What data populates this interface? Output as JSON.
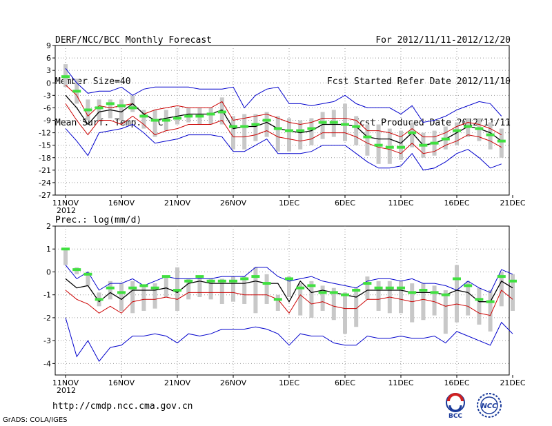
{
  "header": {
    "left": [
      "DERF/NCC/BCC Monthly Forecast",
      "Member Size=40",
      "Mean Surf. Temp.: °C"
    ],
    "right": [
      "For 2012/11/11-2012/12/20",
      "Fcst Started Refer Date 2012/11/10",
      "Fcst Produced Date 2012/11/11"
    ]
  },
  "footer": {
    "url": "http://cmdp.ncc.cma.gov.cn",
    "grads": "GrADS: COLA/IGES"
  },
  "logos": {
    "bcc": "BCC",
    "ncc": "NCC"
  },
  "colors": {
    "envelope": "#0000cc",
    "inner": "#cc0000",
    "mean": "#000000",
    "marker": "#40e040",
    "bar": "#c8c8c8"
  },
  "chart_data": [
    {
      "type": "line",
      "title": "Mean Surf. Temp.: °C",
      "ylim": [
        -27,
        9
      ],
      "yticks": [
        -27,
        -24,
        -21,
        -18,
        -15,
        -12,
        -9,
        -6,
        -3,
        0,
        3,
        6,
        9
      ],
      "xticks": [
        {
          "day": 0,
          "label": "11NOV",
          "sub": "2012"
        },
        {
          "day": 5,
          "label": "16NOV"
        },
        {
          "day": 10,
          "label": "21NOV"
        },
        {
          "day": 15,
          "label": "26NOV"
        },
        {
          "day": 20,
          "label": "1DEC"
        },
        {
          "day": 25,
          "label": "6DEC"
        },
        {
          "day": 30,
          "label": "11DEC"
        },
        {
          "day": 35,
          "label": "16DEC"
        },
        {
          "day": 40,
          "label": "21DEC"
        }
      ],
      "series": [
        {
          "name": "max",
          "values": [
            3.5,
            0,
            -2.5,
            -2,
            -2,
            -1,
            -3,
            -1.5,
            -1,
            -1,
            -1,
            -1,
            -1.5,
            -1.5,
            -1.5,
            -1,
            -6,
            -3,
            -1.5,
            -1,
            -5,
            -5,
            -5.5,
            -5,
            -4.5,
            -3,
            -5,
            -6,
            -6,
            -6,
            -7.5,
            -5.5,
            -9.5,
            -9,
            -8,
            -6.5,
            -5.5,
            -4.5,
            -5,
            -8
          ]
        },
        {
          "name": "inner_high",
          "values": [
            -0.5,
            -3,
            -8,
            -5.5,
            -6,
            -5.5,
            -5,
            -7.5,
            -6.5,
            -6,
            -5.5,
            -6,
            -6,
            -6,
            -4.5,
            -9,
            -8.5,
            -8,
            -7.5,
            -8.5,
            -9.5,
            -10,
            -9.5,
            -8.5,
            -8.5,
            -8.5,
            -9,
            -11.5,
            -11.5,
            -12,
            -13,
            -11,
            -13,
            -13,
            -12,
            -10.5,
            -9.5,
            -10,
            -11,
            -12.5
          ]
        },
        {
          "name": "mean",
          "values": [
            -3,
            -6,
            -10,
            -7,
            -6.5,
            -7,
            -5,
            -7.5,
            -9,
            -8.5,
            -8,
            -7.5,
            -7.5,
            -7.5,
            -6.5,
            -11,
            -10.5,
            -10.5,
            -9.5,
            -11,
            -11.5,
            -12,
            -11.5,
            -10,
            -10,
            -10,
            -10.5,
            -13,
            -13.5,
            -13.5,
            -14.5,
            -12,
            -15,
            -14.5,
            -13.5,
            -12,
            -10.5,
            -11,
            -12,
            -14
          ]
        },
        {
          "name": "inner_low",
          "values": [
            -5,
            -9,
            -12.5,
            -9,
            -9,
            -10,
            -8,
            -10,
            -12.5,
            -11.5,
            -11,
            -10,
            -10,
            -10,
            -9,
            -13,
            -13,
            -12.5,
            -11.5,
            -13,
            -13.5,
            -14,
            -13.5,
            -12,
            -12,
            -12,
            -13,
            -14.5,
            -15.5,
            -16,
            -17,
            -14.5,
            -17,
            -16.5,
            -15,
            -14,
            -12.5,
            -13,
            -14,
            -15.5
          ]
        },
        {
          "name": "min",
          "values": [
            -11,
            -14,
            -17.5,
            -12,
            -11.5,
            -11,
            -10,
            -12,
            -14.5,
            -14,
            -13.5,
            -12.5,
            -12.5,
            -12.5,
            -13,
            -16.5,
            -16.5,
            -15,
            -13.5,
            -17,
            -17,
            -17,
            -16.5,
            -15,
            -15,
            -15,
            -17,
            -19,
            -20.5,
            -20.5,
            -20,
            -17,
            -21,
            -20.5,
            -19,
            -17,
            -16,
            -18,
            -20.5,
            -19.5
          ]
        },
        {
          "name": "observed_marker",
          "values": [
            1.5,
            -2,
            -6.5,
            -6,
            -5,
            -5.5,
            -6,
            -8,
            -9,
            -9,
            -8.5,
            -8,
            -8,
            -7.5,
            -7,
            -10.5,
            -10.5,
            -10,
            -9,
            -11,
            -11.5,
            -11.5,
            -11,
            -9.5,
            -9.5,
            -10,
            -10.5,
            -13,
            -15,
            -15.5,
            -15.5,
            -12,
            -15,
            -14.5,
            -13.5,
            -11.5,
            -10.5,
            -11,
            -12.5,
            -14
          ]
        }
      ],
      "bars_high": [
        4.5,
        1,
        -4,
        -4,
        -4,
        -4,
        -3,
        -6.5,
        -6.5,
        -6.5,
        -6,
        -6,
        -6,
        -6,
        -3.5,
        -8,
        -7.5,
        -7.5,
        -7,
        -8,
        -8.5,
        -9,
        -8.5,
        -7,
        -6.5,
        -5,
        -8,
        -10,
        -10,
        -11,
        -11.5,
        -9.5,
        -12,
        -11.5,
        -10.5,
        -9.5,
        -8.5,
        -8.5,
        -9.5,
        -11
      ],
      "bars_low": [
        -1,
        -5,
        -9,
        -9,
        -8.5,
        -9,
        -7,
        -11,
        -13,
        -11.5,
        -10,
        -9.5,
        -10,
        -10,
        -10,
        -16,
        -16,
        -14,
        -13,
        -16.5,
        -16.5,
        -16,
        -15,
        -13.5,
        -13,
        -14,
        -15,
        -17.5,
        -19.5,
        -19.5,
        -18.5,
        -15.5,
        -18,
        -17.5,
        -16,
        -15,
        -13,
        -14,
        -16,
        -18
      ]
    },
    {
      "type": "line",
      "title": "Prec.: log(mm/d)",
      "ylim": [
        -4.5,
        2
      ],
      "yticks": [
        -4,
        -3,
        -2,
        -1,
        0,
        1,
        2
      ],
      "xticks": [
        {
          "day": 0,
          "label": "11NOV",
          "sub": "2012"
        },
        {
          "day": 5,
          "label": "16NOV"
        },
        {
          "day": 10,
          "label": "21NOV"
        },
        {
          "day": 15,
          "label": "26NOV"
        },
        {
          "day": 20,
          "label": "1DEC"
        },
        {
          "day": 25,
          "label": "6DEC"
        },
        {
          "day": 30,
          "label": "11DEC"
        },
        {
          "day": 35,
          "label": "16DEC"
        },
        {
          "day": 40,
          "label": "21DEC"
        }
      ],
      "series": [
        {
          "name": "max",
          "values": [
            0.3,
            -0.3,
            0,
            -0.8,
            -0.5,
            -0.5,
            -0.3,
            -0.6,
            -0.4,
            -0.2,
            -0.3,
            -0.3,
            -0.3,
            -0.3,
            -0.2,
            -0.2,
            -0.2,
            0.2,
            0.2,
            -0.2,
            -0.4,
            -0.3,
            -0.2,
            -0.4,
            -0.5,
            -0.6,
            -0.7,
            -0.4,
            -0.3,
            -0.3,
            -0.4,
            -0.3,
            -0.5,
            -0.5,
            -0.6,
            -0.8,
            -0.4,
            -0.7,
            -0.9,
            0.1,
            -0.1
          ]
        },
        {
          "name": "mean",
          "values": [
            -0.3,
            -0.7,
            -0.6,
            -1.3,
            -0.9,
            -1.2,
            -0.8,
            -0.8,
            -0.8,
            -0.7,
            -0.9,
            -0.5,
            -0.4,
            -0.5,
            -0.5,
            -0.5,
            -0.5,
            -0.4,
            -0.5,
            -0.5,
            -1.3,
            -0.4,
            -0.9,
            -0.8,
            -0.9,
            -1.0,
            -1.1,
            -0.8,
            -0.8,
            -0.8,
            -0.8,
            -0.9,
            -0.9,
            -0.9,
            -1.0,
            -0.8,
            -0.9,
            -1.3,
            -1.3,
            -0.4,
            -0.7
          ]
        },
        {
          "name": "inner_low",
          "values": [
            -0.8,
            -1.2,
            -1.4,
            -1.8,
            -1.5,
            -1.8,
            -1.3,
            -1.2,
            -1.2,
            -1.1,
            -1.2,
            -0.9,
            -0.9,
            -0.9,
            -0.9,
            -0.9,
            -1.0,
            -1.0,
            -1.0,
            -1.2,
            -1.8,
            -1.0,
            -1.4,
            -1.3,
            -1.5,
            -1.6,
            -1.6,
            -1.2,
            -1.2,
            -1.1,
            -1.2,
            -1.3,
            -1.2,
            -1.3,
            -1.5,
            -1.4,
            -1.5,
            -1.8,
            -1.9,
            -0.8,
            -1.2
          ]
        },
        {
          "name": "min",
          "values": [
            -2.0,
            -3.7,
            -3.0,
            -3.9,
            -3.3,
            -3.2,
            -2.8,
            -2.8,
            -2.7,
            -2.8,
            -3.1,
            -2.7,
            -2.8,
            -2.7,
            -2.5,
            -2.5,
            -2.5,
            -2.4,
            -2.5,
            -2.7,
            -3.2,
            -2.7,
            -2.8,
            -2.8,
            -3.1,
            -3.2,
            -3.2,
            -2.8,
            -2.9,
            -2.9,
            -2.8,
            -2.9,
            -2.9,
            -2.8,
            -3.1,
            -2.6,
            -2.8,
            -3.0,
            -3.2,
            -2.2,
            -2.7
          ]
        },
        {
          "name": "observed_marker",
          "values": [
            1.0,
            0.1,
            -0.1,
            -1.2,
            -0.7,
            -0.9,
            -0.7,
            -0.6,
            -0.7,
            -0.2,
            -0.8,
            -0.4,
            -0.2,
            -0.4,
            -0.4,
            -0.4,
            -0.3,
            -0.2,
            -0.5,
            -1.2,
            -0.3,
            -0.7,
            -0.6,
            -0.9,
            -0.9,
            -1.0,
            -0.8,
            -0.5,
            -0.7,
            -0.7,
            -0.7,
            -0.9,
            -0.8,
            -0.9,
            -1.0,
            -0.3,
            -0.6,
            -1.2,
            -1.3,
            -0.2,
            -0.4
          ]
        }
      ],
      "bars_high": [
        1.0,
        0.2,
        0,
        -0.9,
        -0.4,
        -0.5,
        -0.4,
        -0.6,
        -0.5,
        -0.2,
        0.2,
        -0.3,
        -0.2,
        -0.3,
        -0.3,
        -0.2,
        -0.2,
        0.2,
        -0.1,
        -1.0,
        -0.2,
        -0.5,
        -0.4,
        -0.6,
        -0.7,
        -0.9,
        -0.7,
        -0.2,
        -0.4,
        -0.4,
        -0.4,
        -0.5,
        -0.5,
        -0.6,
        -0.8,
        0.3,
        -0.4,
        -0.7,
        -0.8,
        0,
        -0.1
      ],
      "bars_low": [
        0.3,
        -0.1,
        -0.6,
        -1.5,
        -1.2,
        -1.7,
        -1.8,
        -1.7,
        -1.6,
        -1.1,
        -1.7,
        -1.2,
        -1.1,
        -1.2,
        -1.4,
        -1.3,
        -1.4,
        -1.8,
        -1.4,
        -1.7,
        -1.1,
        -1.9,
        -2.0,
        -1.7,
        -2.1,
        -2.7,
        -2.4,
        -1.2,
        -1.7,
        -1.8,
        -1.8,
        -2.2,
        -2.1,
        -1.9,
        -2.7,
        -2.2,
        -1.9,
        -2.3,
        -2.6,
        -1.5,
        -1.7
      ]
    }
  ]
}
